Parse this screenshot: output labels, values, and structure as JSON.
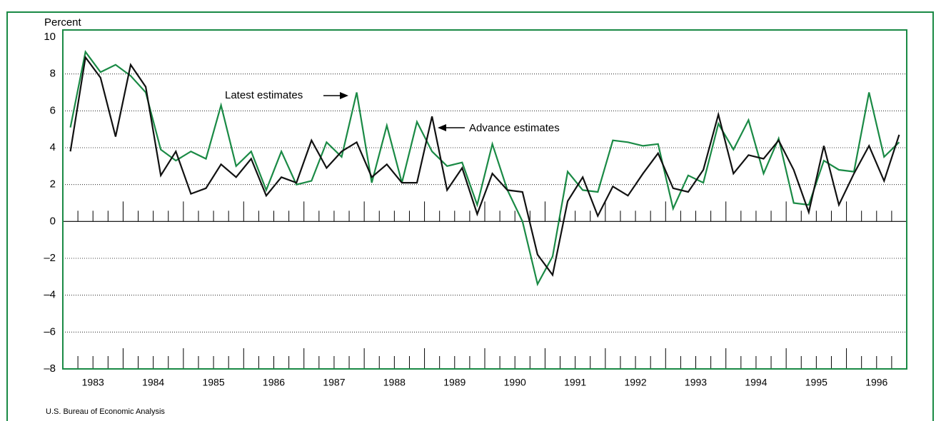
{
  "chart_data": {
    "type": "line",
    "ylabel": "Percent",
    "source": "U.S. Bureau of Economic Analysis",
    "categories": [
      "1983",
      "1984",
      "1985",
      "1986",
      "1987",
      "1988",
      "1989",
      "1990",
      "1991",
      "1992",
      "1993",
      "1994",
      "1995",
      "1996"
    ],
    "series": [
      {
        "name": "Latest estimates",
        "color": "#1a8a45",
        "values": [
          [
            5.1,
            9.2,
            8.1,
            8.5
          ],
          [
            7.9,
            7.0,
            3.9,
            3.3
          ],
          [
            3.8,
            3.4,
            6.3,
            3.0
          ],
          [
            3.8,
            1.7,
            3.8,
            2.0
          ],
          [
            2.2,
            4.3,
            3.5,
            7.0
          ],
          [
            2.1,
            5.2,
            2.1,
            5.4
          ],
          [
            3.8,
            3.0,
            3.2,
            0.9
          ],
          [
            4.2,
            1.7,
            0.0,
            -3.4
          ],
          [
            -1.9,
            2.7,
            1.7,
            1.6
          ],
          [
            4.4,
            4.3,
            4.1,
            4.2
          ],
          [
            0.7,
            2.5,
            2.1,
            5.3
          ],
          [
            3.9,
            5.5,
            2.6,
            4.5
          ],
          [
            1.0,
            0.9,
            3.3,
            2.8
          ],
          [
            2.7,
            7.0,
            3.5,
            4.3
          ]
        ]
      },
      {
        "name": "Advance estimates",
        "color": "#111111",
        "values": [
          [
            3.8,
            8.9,
            7.8,
            4.6
          ],
          [
            8.5,
            7.3,
            2.5,
            3.8
          ],
          [
            1.5,
            1.8,
            3.1,
            2.4
          ],
          [
            3.4,
            1.4,
            2.4,
            2.1
          ],
          [
            4.4,
            2.9,
            3.8,
            4.3
          ],
          [
            2.4,
            3.1,
            2.1,
            2.1
          ],
          [
            5.7,
            1.7,
            2.9,
            0.4
          ],
          [
            2.6,
            1.7,
            1.6,
            -1.8
          ],
          [
            -2.9,
            1.1,
            2.4,
            0.3
          ],
          [
            1.9,
            1.4,
            2.6,
            3.7
          ],
          [
            1.8,
            1.6,
            2.8,
            5.8
          ],
          [
            2.6,
            3.6,
            3.4,
            4.4
          ],
          [
            2.8,
            0.5,
            4.1,
            0.9
          ],
          [
            2.6,
            4.1,
            2.2,
            4.7
          ]
        ]
      }
    ],
    "ylim": [
      -8,
      10
    ],
    "yticks": [
      {
        "value": -8,
        "label": "–8"
      },
      {
        "value": -6,
        "label": "–6"
      },
      {
        "value": -4,
        "label": "–4"
      },
      {
        "value": -2,
        "label": "–2"
      },
      0,
      2,
      4,
      6,
      8,
      10
    ],
    "grid": true
  }
}
